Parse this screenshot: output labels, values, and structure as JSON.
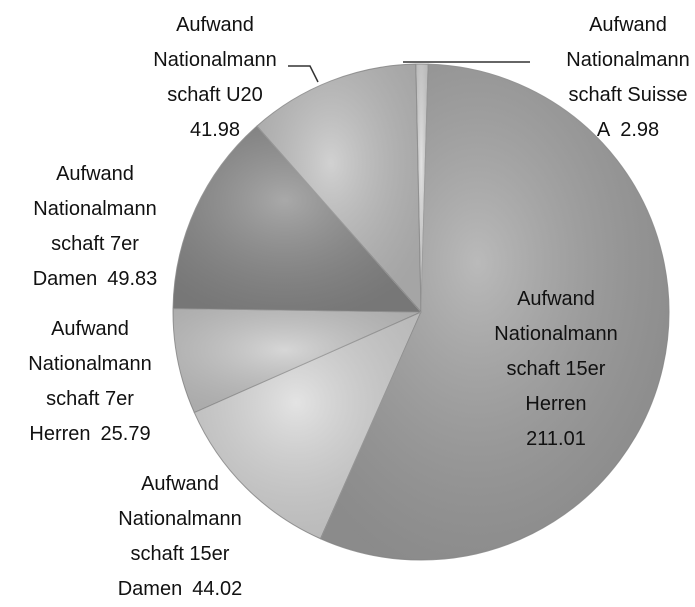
{
  "chart_data": {
    "type": "pie",
    "categories": [
      "Aufwand\nNationalmann\nschaft Suisse\nA",
      "Aufwand\nNationalmann\nschaft 15er\nHerren",
      "Aufwand\nNationalmann\nschaft 15er\nDamen",
      "Aufwand\nNationalmann\nschaft 7er\nHerren",
      "Aufwand\nNationalmann\nschaft 7er\nDamen",
      "Aufwand\nNationalmann\nschaft U20"
    ],
    "values": [
      2.98,
      211.01,
      44.02,
      25.79,
      49.83,
      41.98
    ],
    "colors": [
      "#d9d9d9",
      "#a3a3a3",
      "#dadada",
      "#c9c9c9",
      "#8c8c8c",
      "#c2c2c2"
    ]
  }
}
